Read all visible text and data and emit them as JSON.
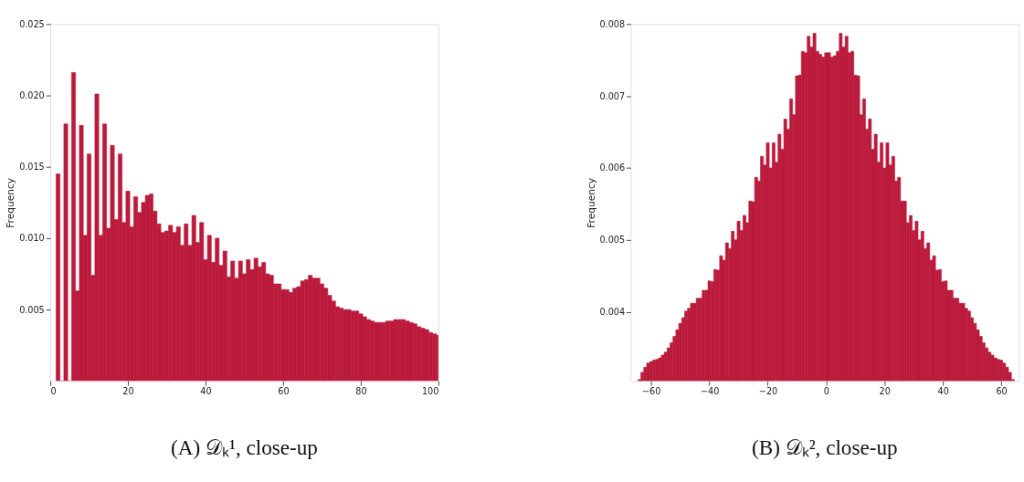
{
  "chart_data": [
    {
      "type": "histogram",
      "title": "(A) 𝒟ₖ¹, close-up",
      "ylabel": "Frequency",
      "color": "#bb1a3b",
      "bins": [
        1.5,
        2.5,
        3.5,
        4.5,
        5.5,
        6.5,
        7.5,
        8.5,
        9.5,
        10.5,
        11.5,
        12.5,
        13.5,
        14.5,
        15.5,
        16.5,
        17.5,
        18.5,
        19.5,
        20.5,
        21.5,
        22.5,
        23.5,
        24.5,
        25.5,
        26.5,
        27.5,
        28.5,
        29.5,
        30.5,
        31.5,
        32.5,
        33.5,
        34.5,
        35.5,
        36.5,
        37.5,
        38.5,
        39.5,
        40.5,
        41.5,
        42.5,
        43.5,
        44.5,
        45.5,
        46.5,
        47.5,
        48.5,
        49.5,
        50.5,
        51.5,
        52.5,
        53.5,
        54.5,
        55.5,
        56.5,
        57.5,
        58.5,
        59.5,
        60.5,
        61.5,
        62.5,
        63.5,
        64.5,
        65.5,
        66.5,
        67.5,
        68.5,
        69.5,
        70.5,
        71.5,
        72.5,
        73.5,
        74.5,
        75.5,
        76.5,
        77.5,
        78.5,
        79.5,
        80.5,
        81.5,
        82.5,
        83.5,
        84.5,
        85.5,
        86.5,
        87.5,
        88.5,
        89.5,
        90.5,
        91.5,
        92.5,
        93.5,
        94.5,
        95.5,
        96.5,
        97.5,
        98.5,
        99.5,
        100
      ],
      "values": [
        0.0145,
        0,
        0.018,
        0,
        0.0216,
        0.0063,
        0.0179,
        0.0102,
        0.0159,
        0.0074,
        0.0201,
        0.0102,
        0.018,
        0.0107,
        0.0165,
        0.0113,
        0.0159,
        0.0111,
        0.0133,
        0.0108,
        0.0129,
        0.0118,
        0.0125,
        0.013,
        0.0131,
        0.0119,
        0.011,
        0.0104,
        0.0105,
        0.0109,
        0.0104,
        0.0108,
        0.0095,
        0.011,
        0.0095,
        0.0116,
        0.0097,
        0.0111,
        0.0085,
        0.0102,
        0.0083,
        0.01,
        0.0081,
        0.0091,
        0.0073,
        0.0084,
        0.0072,
        0.0084,
        0.0075,
        0.0085,
        0.0078,
        0.0086,
        0.008,
        0.0083,
        0.0075,
        0.0074,
        0.0068,
        0.0068,
        0.0064,
        0.0064,
        0.0062,
        0.0065,
        0.0066,
        0.007,
        0.0071,
        0.0074,
        0.0072,
        0.0072,
        0.0068,
        0.0065,
        0.006,
        0.0056,
        0.0052,
        0.0051,
        0.005,
        0.005,
        0.0049,
        0.0049,
        0.0047,
        0.0045,
        0.0043,
        0.0042,
        0.0041,
        0.0041,
        0.0041,
        0.0042,
        0.0042,
        0.0043,
        0.0043,
        0.0043,
        0.0042,
        0.0041,
        0.004,
        0.0038,
        0.0037,
        0.0036,
        0.0034,
        0.0033,
        0.0032
      ],
      "xlim": [
        0,
        100
      ],
      "xticks": [
        0,
        20,
        40,
        60,
        80,
        100
      ],
      "ylim": [
        0,
        0.025
      ],
      "yticks": [
        0.005,
        {
          "value": 0.01,
          "label": "0.010"
        },
        0.015,
        {
          "value": 0.02,
          "label": "0.020"
        },
        0.025
      ]
    },
    {
      "type": "histogram",
      "title": "(B) 𝒟ₖ², close-up",
      "ylabel": "Frequency",
      "color": "#bb1a3b",
      "bins": [
        -64.5,
        -63.5,
        -62.5,
        -61.5,
        -60.5,
        -59.5,
        -58.5,
        -57.5,
        -56.5,
        -55.5,
        -54.5,
        -53.5,
        -52.5,
        -51.5,
        -50.5,
        -49.5,
        -48.5,
        -47.5,
        -46.5,
        -45.5,
        -44.5,
        -43.5,
        -42.5,
        -41.5,
        -40.5,
        -39.5,
        -38.5,
        -37.5,
        -36.5,
        -35.5,
        -34.5,
        -33.5,
        -32.5,
        -31.5,
        -30.5,
        -29.5,
        -28.5,
        -27.5,
        -26.5,
        -25.5,
        -24.5,
        -23.5,
        -22.5,
        -21.5,
        -20.5,
        -19.5,
        -18.5,
        -17.5,
        -16.5,
        -15.5,
        -14.5,
        -13.5,
        -12.5,
        -11.5,
        -10.5,
        -9.5,
        -8.5,
        -7.5,
        -6.5,
        -5.5,
        -4.5,
        -3.5,
        -2.5,
        -1.5,
        -0.5,
        0.5,
        1.5,
        2.5,
        3.5,
        4.5,
        5.5,
        6.5,
        7.5,
        8.5,
        9.5,
        10.5,
        11.5,
        12.5,
        13.5,
        14.5,
        15.5,
        16.5,
        17.5,
        18.5,
        19.5,
        20.5,
        21.5,
        22.5,
        23.5,
        24.5,
        25.5,
        26.5,
        27.5,
        28.5,
        29.5,
        30.5,
        31.5,
        32.5,
        33.5,
        34.5,
        35.5,
        36.5,
        37.5,
        38.5,
        39.5,
        40.5,
        41.5,
        42.5,
        43.5,
        44.5,
        45.5,
        46.5,
        47.5,
        48.5,
        49.5,
        50.5,
        51.5,
        52.5,
        53.5,
        54.5,
        55.5,
        56.5,
        57.5,
        58.5,
        59.5,
        60.5,
        61.5,
        62.5,
        63.5,
        64.5
      ],
      "values": [
        0.00306,
        0.00316,
        0.00323,
        0.00329,
        0.00331,
        0.00333,
        0.00334,
        0.00336,
        0.0034,
        0.00344,
        0.0035,
        0.00357,
        0.00366,
        0.00375,
        0.00384,
        0.00392,
        0.00401,
        0.00405,
        0.00412,
        0.00412,
        0.00419,
        0.00419,
        0.0043,
        0.0043,
        0.00443,
        0.00442,
        0.00459,
        0.00458,
        0.00478,
        0.00472,
        0.00496,
        0.00488,
        0.00512,
        0.005,
        0.00526,
        0.00513,
        0.00534,
        0.00524,
        0.00554,
        0.00553,
        0.00587,
        0.00582,
        0.00616,
        0.00604,
        0.00635,
        0.006,
        0.00635,
        0.00608,
        0.00647,
        0.00626,
        0.00668,
        0.00654,
        0.00696,
        0.00674,
        0.00728,
        0.00729,
        0.00762,
        0.0076,
        0.00783,
        0.00768,
        0.00787,
        0.00762,
        0.00758,
        0.00754,
        0.0076,
        0.0076,
        0.00754,
        0.00756,
        0.00762,
        0.00787,
        0.00768,
        0.00783,
        0.0076,
        0.00762,
        0.00729,
        0.00728,
        0.00674,
        0.00696,
        0.00654,
        0.00668,
        0.00626,
        0.00647,
        0.00608,
        0.00635,
        0.006,
        0.00635,
        0.00604,
        0.00616,
        0.00582,
        0.00587,
        0.00554,
        0.00554,
        0.00524,
        0.00534,
        0.00513,
        0.00526,
        0.005,
        0.00512,
        0.00488,
        0.00496,
        0.00472,
        0.00478,
        0.00458,
        0.00459,
        0.00442,
        0.00443,
        0.0043,
        0.0043,
        0.00419,
        0.00419,
        0.00412,
        0.00412,
        0.00405,
        0.00401,
        0.00392,
        0.00384,
        0.00375,
        0.00366,
        0.00357,
        0.0035,
        0.00344,
        0.0034,
        0.00336,
        0.00334,
        0.00333,
        0.00329,
        0.00323,
        0.00316,
        0.00306
      ],
      "xlim": [
        -67,
        66
      ],
      "xticks": [
        -60,
        -40,
        -20,
        0,
        20,
        40,
        60
      ],
      "ylim": [
        0.00304,
        0.008
      ],
      "yticks": [
        0.004,
        0.005,
        0.006,
        0.007,
        0.008
      ]
    }
  ]
}
